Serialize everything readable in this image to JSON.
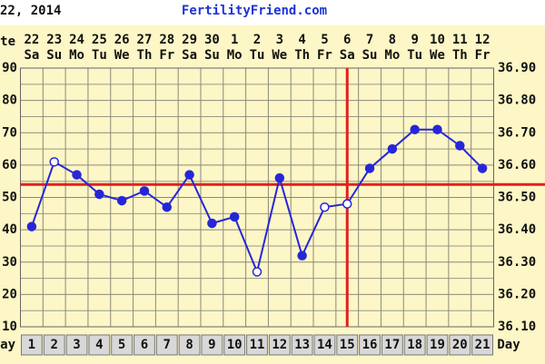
{
  "chart_data": {
    "type": "line",
    "date_caption": "22, 2014",
    "site": "FertilityFriend.com",
    "date_row_label": "te",
    "day_row_label": "ay",
    "day_axis_label": "Day",
    "dates": [
      "22",
      "23",
      "24",
      "25",
      "26",
      "27",
      "28",
      "29",
      "30",
      "1",
      "2",
      "3",
      "4",
      "5",
      "6",
      "7",
      "8",
      "9",
      "10",
      "11",
      "12"
    ],
    "weekdays": [
      "Sa",
      "Su",
      "Mo",
      "Tu",
      "We",
      "Th",
      "Fr",
      "Sa",
      "Su",
      "Mo",
      "Tu",
      "We",
      "Th",
      "Fr",
      "Sa",
      "Su",
      "Mo",
      "Tu",
      "We",
      "Th",
      "Fr"
    ],
    "x": [
      1,
      2,
      3,
      4,
      5,
      6,
      7,
      8,
      9,
      10,
      11,
      12,
      13,
      14,
      15,
      16,
      17,
      18,
      19,
      20,
      21
    ],
    "values": [
      36.41,
      36.61,
      36.57,
      36.51,
      36.49,
      36.52,
      36.47,
      36.57,
      36.42,
      36.44,
      36.27,
      36.56,
      36.32,
      36.47,
      36.48,
      36.59,
      36.65,
      36.71,
      36.71,
      36.66,
      36.59
    ],
    "hollow": [
      false,
      true,
      false,
      false,
      false,
      false,
      false,
      false,
      false,
      false,
      true,
      false,
      false,
      true,
      true,
      false,
      false,
      false,
      false,
      false,
      false
    ],
    "color": "#2626d9",
    "coverline": 36.54,
    "ovulation_day": 15,
    "marker_color": "#e02020",
    "ylim": [
      36.1,
      36.9
    ],
    "yticks": [
      {
        "value": 36.9,
        "label": "36.90"
      },
      {
        "value": 36.8,
        "label": "36.80"
      },
      {
        "value": 36.7,
        "label": "36.70"
      },
      {
        "value": 36.6,
        "label": "36.60"
      },
      {
        "value": 36.5,
        "label": "36.50"
      },
      {
        "value": 36.4,
        "label": "36.40"
      },
      {
        "value": 36.3,
        "label": "36.30"
      },
      {
        "value": 36.2,
        "label": "36.20"
      },
      {
        "value": 36.1,
        "label": "36.10"
      }
    ],
    "grid": true
  }
}
